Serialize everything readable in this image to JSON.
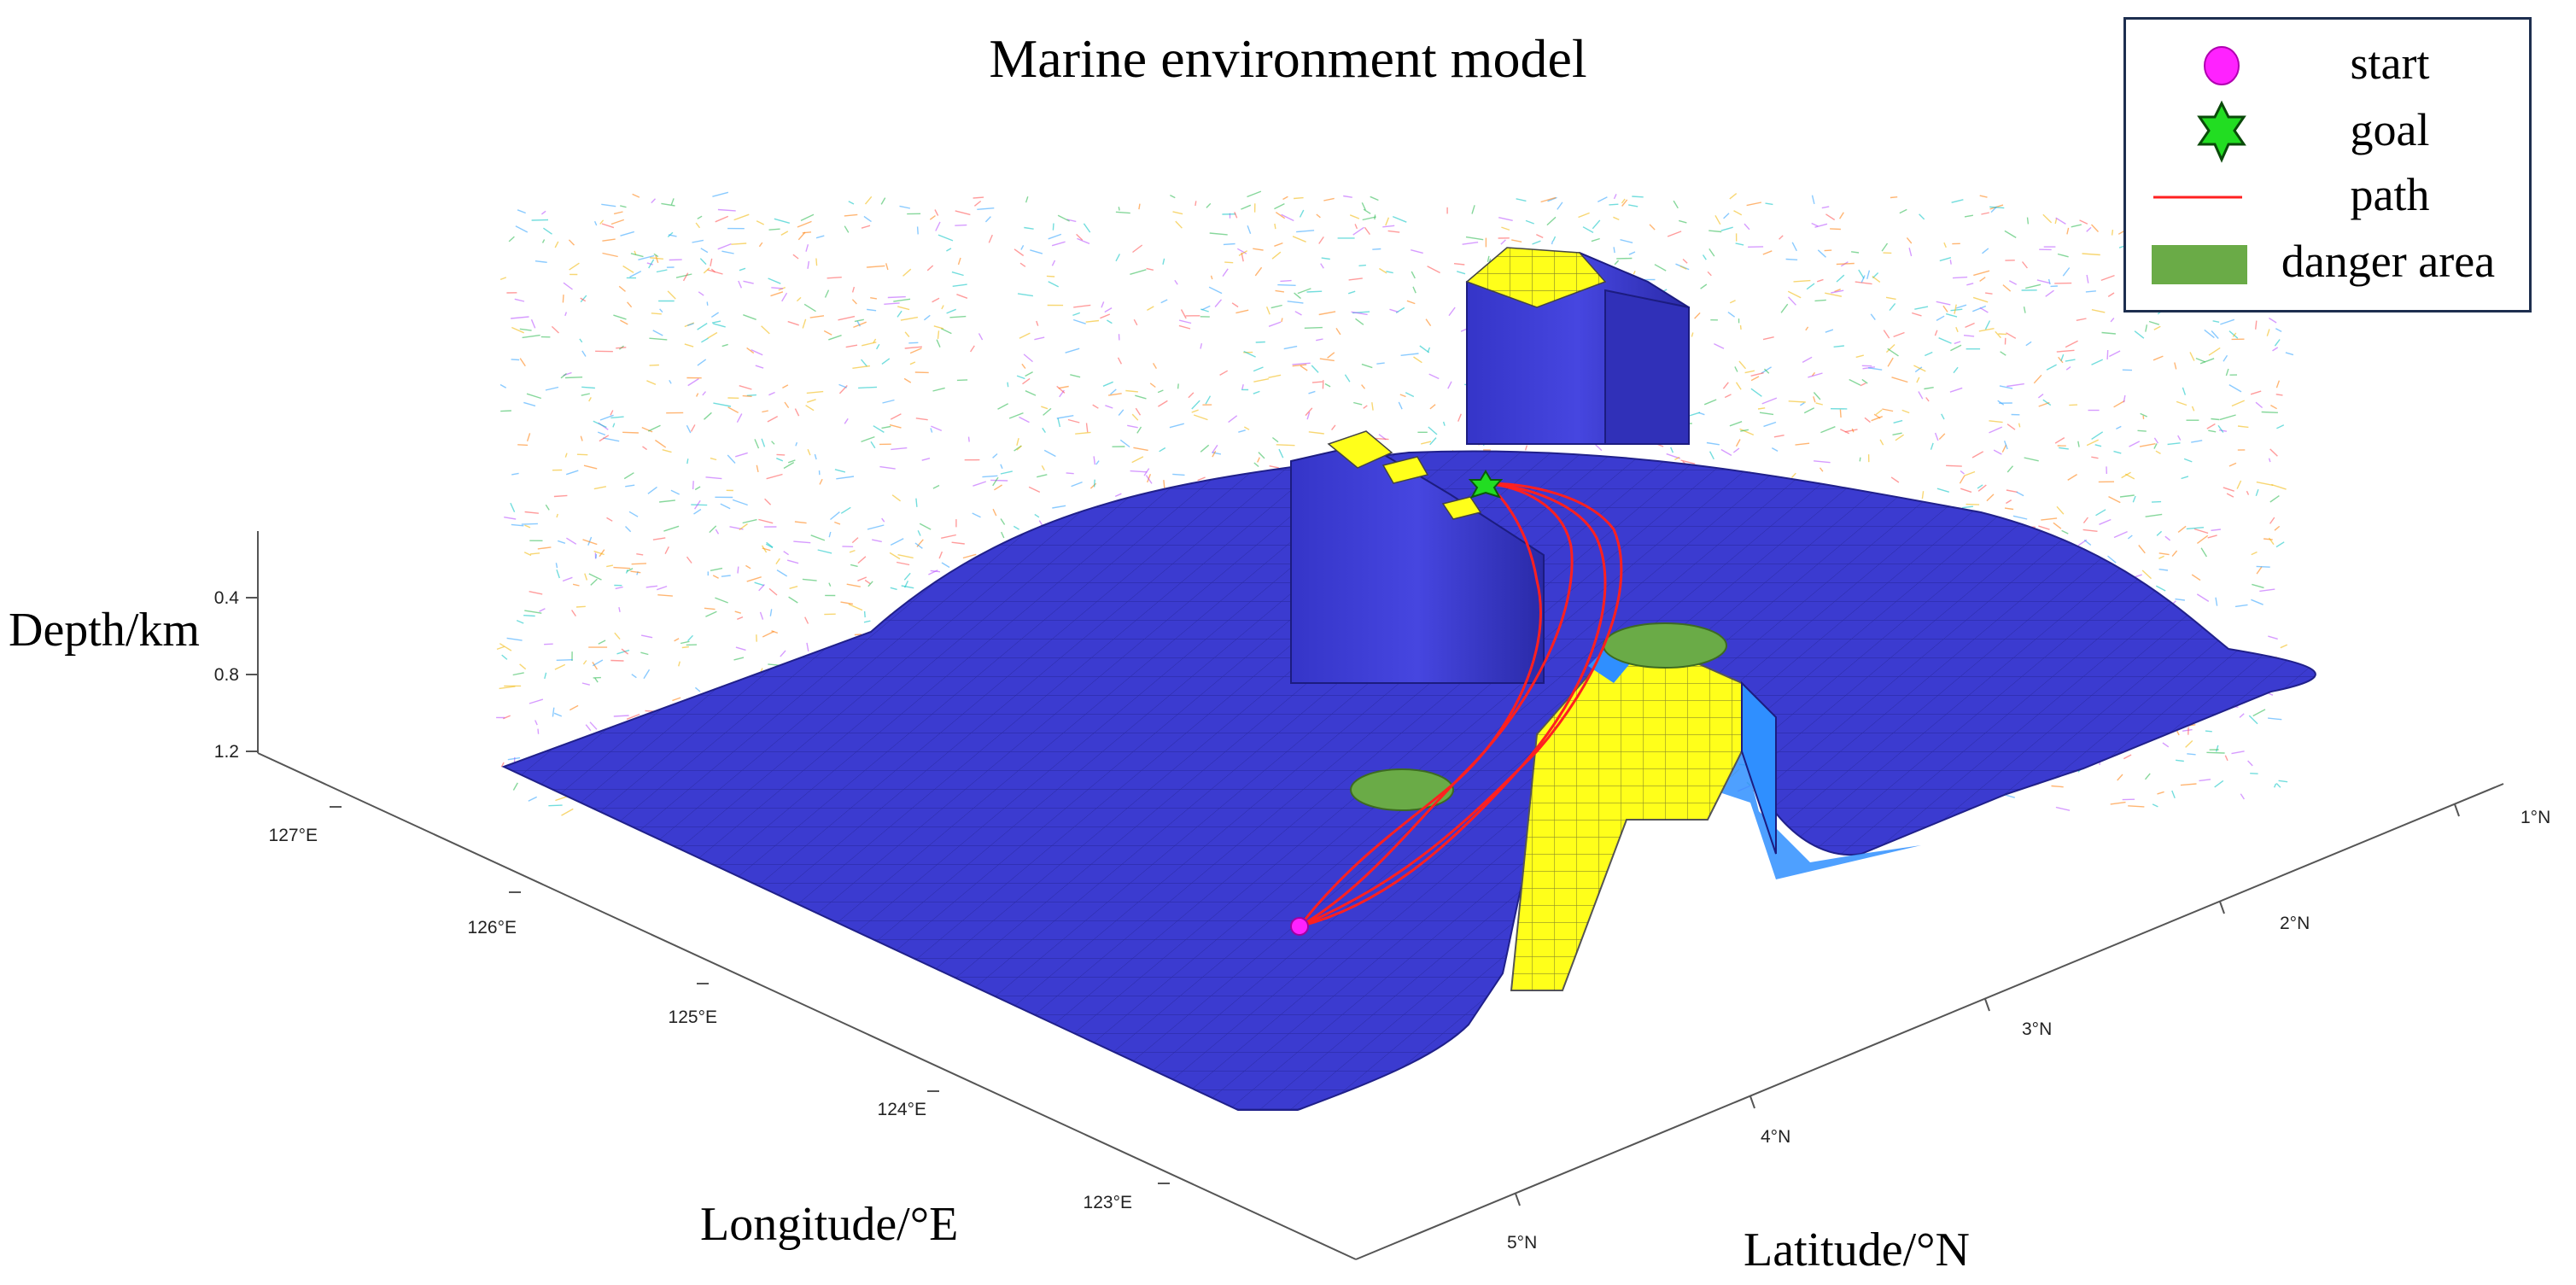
{
  "chart_data": {
    "type": "surface3d",
    "title": "Marine environment model",
    "zlabel": "Depth/km",
    "xlabel": "Longitude/°E",
    "ylabel": "Latitude/°N",
    "z_ticks": [
      "0.4",
      "0.8",
      "1.2"
    ],
    "x_ticks": [
      "127°E",
      "126°E",
      "125°E",
      "124°E",
      "123°E"
    ],
    "y_ticks": [
      "1°N",
      "2°N",
      "3°N",
      "4°N",
      "5°N"
    ],
    "legend": [
      {
        "label": "start",
        "symbol": "circle",
        "color": "#ff22ff"
      },
      {
        "label": "goal",
        "symbol": "hexagram",
        "color": "#22dd22"
      },
      {
        "label": "path",
        "symbol": "line",
        "color": "#ff2020"
      },
      {
        "label": "danger area",
        "symbol": "patch",
        "color": "#6aab47"
      }
    ],
    "surface_colors": {
      "seabed": "#3b3bd0",
      "island_top": "#ffff1a",
      "island_wall": "#2f8fff"
    },
    "grid": false,
    "legend_position": "top-right"
  }
}
